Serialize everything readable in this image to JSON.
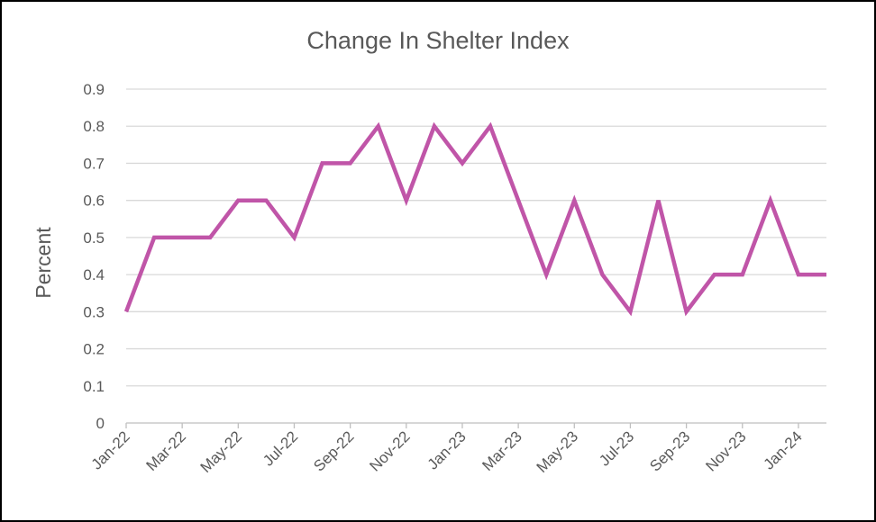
{
  "chart_data": {
    "type": "line",
    "title": "Change In Shelter Index",
    "xlabel": "",
    "ylabel": "Percent",
    "ylim": [
      0,
      0.9
    ],
    "yticks": [
      "0",
      "0.1",
      "0.2",
      "0.3",
      "0.4",
      "0.5",
      "0.6",
      "0.7",
      "0.8",
      "0.9"
    ],
    "grid": true,
    "x": [
      "Jan-22",
      "Feb-22",
      "Mar-22",
      "Apr-22",
      "May-22",
      "Jun-22",
      "Jul-22",
      "Aug-22",
      "Sep-22",
      "Oct-22",
      "Nov-22",
      "Dec-22",
      "Jan-23",
      "Feb-23",
      "Mar-23",
      "Apr-23",
      "May-23",
      "Jun-23",
      "Jul-23",
      "Aug-23",
      "Sep-23",
      "Oct-23",
      "Nov-23",
      "Dec-23",
      "Jan-24",
      "Feb-24"
    ],
    "x_tick_labels": [
      "Jan-22",
      "Mar-22",
      "May-22",
      "Jul-22",
      "Sep-22",
      "Nov-22",
      "Jan-23",
      "Mar-23",
      "May-23",
      "Jul-23",
      "Sep-23",
      "Nov-23",
      "Jan-24"
    ],
    "series": [
      {
        "color": "#C055A8",
        "values": [
          0.3,
          0.5,
          0.5,
          0.5,
          0.6,
          0.6,
          0.5,
          0.7,
          0.7,
          0.8,
          0.6,
          0.8,
          0.7,
          0.8,
          0.6,
          0.4,
          0.6,
          0.4,
          0.3,
          0.6,
          0.3,
          0.4,
          0.4,
          0.6,
          0.4,
          0.4
        ]
      }
    ]
  }
}
